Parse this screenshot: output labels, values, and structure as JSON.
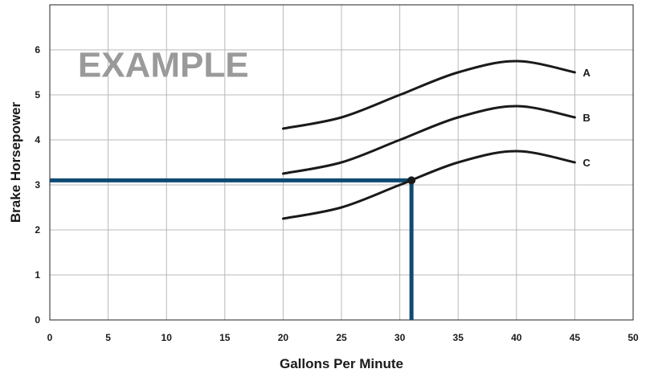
{
  "chart_data": {
    "type": "line",
    "title": "",
    "xlabel": "Gallons Per Minute",
    "ylabel": "Brake Horsepower",
    "xlim": [
      0,
      50
    ],
    "ylim": [
      0,
      7
    ],
    "x_ticks": [
      0,
      5,
      10,
      15,
      20,
      25,
      30,
      35,
      40,
      45,
      50
    ],
    "y_ticks": [
      0,
      1,
      2,
      3,
      4,
      5,
      6
    ],
    "grid": true,
    "legend": "none",
    "annotation": "EXAMPLE",
    "x": [
      20,
      25,
      30,
      35,
      40,
      45
    ],
    "series": [
      {
        "name": "A",
        "values": [
          4.25,
          4.5,
          5.0,
          5.5,
          5.75,
          5.5
        ]
      },
      {
        "name": "B",
        "values": [
          3.25,
          3.5,
          4.0,
          4.5,
          4.75,
          4.5
        ]
      },
      {
        "name": "C",
        "values": [
          2.25,
          2.5,
          3.0,
          3.5,
          3.75,
          3.5
        ]
      }
    ],
    "reference_point": {
      "x": 31,
      "y": 3.1
    },
    "colors": {
      "series_line": "#1a1a1a",
      "reference_line": "#0e4a72",
      "grid": "#b8b8b8",
      "watermark": "#9a9a9a"
    }
  }
}
